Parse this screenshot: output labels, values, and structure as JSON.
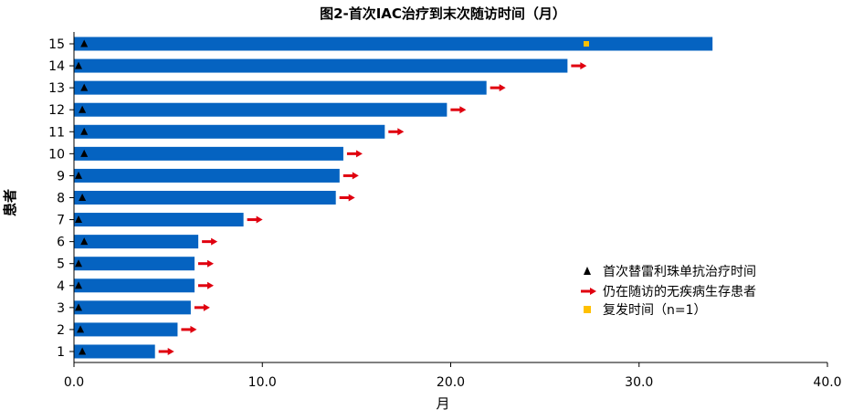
{
  "chart_data": {
    "type": "bar",
    "orientation": "horizontal",
    "title": "图2-首次IAC治疗到末次随访时间（月）",
    "xlabel": "月",
    "ylabel": "患者",
    "xlim": [
      0,
      40
    ],
    "x_ticks": [
      "0.0",
      "10.0",
      "20.0",
      "30.0",
      "40.0"
    ],
    "categories": [
      "1",
      "2",
      "3",
      "4",
      "5",
      "6",
      "7",
      "8",
      "9",
      "10",
      "11",
      "12",
      "13",
      "14",
      "15"
    ],
    "values": [
      4.3,
      5.5,
      6.2,
      6.4,
      6.4,
      6.6,
      9.0,
      13.9,
      14.1,
      14.3,
      16.5,
      19.8,
      21.9,
      26.2,
      33.9
    ],
    "treatment_start": [
      0.2,
      0.1,
      0.0,
      0.0,
      0.0,
      0.3,
      0.0,
      0.2,
      0.0,
      0.3,
      0.3,
      0.2,
      0.3,
      0.0,
      0.3
    ],
    "alive_no_disease": [
      true,
      true,
      true,
      true,
      true,
      true,
      true,
      true,
      true,
      true,
      true,
      true,
      true,
      true,
      false
    ],
    "recurrence": [
      null,
      null,
      null,
      null,
      null,
      null,
      null,
      null,
      null,
      null,
      null,
      null,
      null,
      null,
      27.2
    ],
    "colors": {
      "bar": "#0563C1",
      "arrow": "#E0000F",
      "triangle": "#000000",
      "recurrence": "#FFC000"
    },
    "legend": {
      "placement": "bottom-right",
      "entries": [
        {
          "marker": "triangle",
          "label": "首次替雷利珠单抗治疗时间"
        },
        {
          "marker": "arrow",
          "label": "仍在随访的无疾病生存患者"
        },
        {
          "marker": "square",
          "label": "复发时间（n=1）"
        }
      ]
    }
  }
}
